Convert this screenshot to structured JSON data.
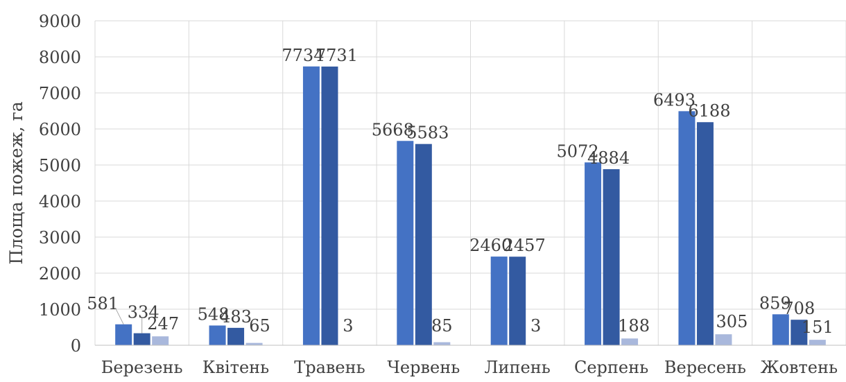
{
  "chart_data": {
    "type": "bar",
    "categories": [
      "Березень",
      "Квітень",
      "Травень",
      "Червень",
      "Липень",
      "Серпень",
      "Вересень",
      "Жовтень"
    ],
    "series": [
      {
        "values": [
          581,
          548,
          7734,
          5668,
          2460,
          5072,
          6493,
          859
        ],
        "color": "#4472c4"
      },
      {
        "values": [
          334,
          483,
          7731,
          5583,
          2457,
          4884,
          6188,
          708
        ],
        "color": "#335aa1"
      },
      {
        "values": [
          247,
          65,
          3,
          85,
          3,
          188,
          305,
          151
        ],
        "color": "#a9b8dc"
      }
    ],
    "title": "",
    "xlabel": "",
    "ylabel": "Площа пожеж, га",
    "ylim": [
      0,
      9000
    ],
    "yticks": [
      0,
      1000,
      2000,
      3000,
      4000,
      5000,
      6000,
      7000,
      8000,
      9000
    ],
    "grid": true,
    "legend": "none"
  }
}
